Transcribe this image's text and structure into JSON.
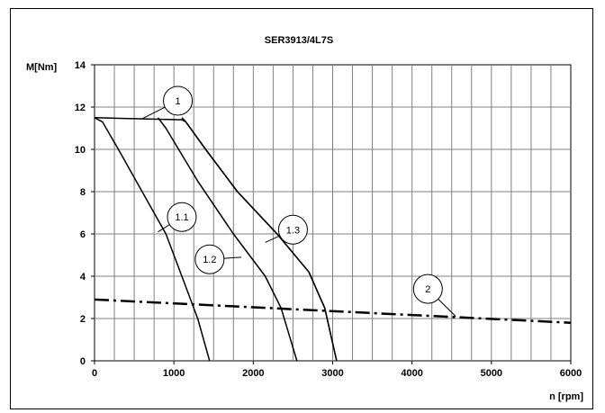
{
  "chart_data": {
    "type": "line",
    "title": "SER3913/4L7S",
    "xlabel": "n [rpm]",
    "ylabel": "M[Nm]",
    "xlim": [
      0,
      6000
    ],
    "ylim": [
      0,
      14
    ],
    "x_ticks": [
      0,
      1000,
      2000,
      3000,
      4000,
      5000,
      6000
    ],
    "y_ticks": [
      0,
      2,
      4,
      6,
      8,
      10,
      12,
      14
    ],
    "x_minor_step": 250,
    "y_minor_step": 2,
    "grid": true,
    "series": [
      {
        "name": "1",
        "style": "solid",
        "x": [
          0,
          1100,
          1150,
          1400,
          1800,
          2300,
          2700,
          2900,
          3050
        ],
        "y": [
          11.5,
          11.4,
          11.3,
          10.0,
          8.0,
          6.0,
          4.2,
          2.5,
          0
        ]
      },
      {
        "name": "1.1",
        "style": "solid",
        "x": [
          0,
          100,
          300,
          600,
          900,
          1100,
          1200,
          1300,
          1450
        ],
        "y": [
          11.5,
          11.3,
          10.0,
          8.0,
          6.0,
          4.0,
          3.0,
          2.0,
          0
        ]
      },
      {
        "name": "1.2",
        "style": "solid",
        "x": [
          800,
          900,
          1300,
          1750,
          2150,
          2350,
          2550
        ],
        "y": [
          11.5,
          11.0,
          8.5,
          6.0,
          4.0,
          2.5,
          0
        ]
      },
      {
        "name": "1.3",
        "style": "solid",
        "x": [
          1100,
          1150,
          1400,
          1800,
          2300,
          2700,
          2900,
          3050
        ],
        "y": [
          11.5,
          11.3,
          10.0,
          8.0,
          6.0,
          4.2,
          2.5,
          0
        ]
      },
      {
        "name": "2",
        "style": "dash-dot",
        "x": [
          0,
          6000
        ],
        "y": [
          2.9,
          1.8
        ]
      }
    ],
    "callouts": [
      {
        "label": "1",
        "x": 1050,
        "y": 12.3,
        "point_x": 600,
        "point_y": 11.45
      },
      {
        "label": "1.1",
        "x": 1100,
        "y": 6.8,
        "point_x": 800,
        "point_y": 6.1
      },
      {
        "label": "1.2",
        "x": 1450,
        "y": 4.8,
        "point_x": 1850,
        "point_y": 4.9
      },
      {
        "label": "1.3",
        "x": 2500,
        "y": 6.2,
        "point_x": 2150,
        "point_y": 5.6
      },
      {
        "label": "2",
        "x": 4200,
        "y": 3.4,
        "point_x": 4550,
        "point_y": 2.1
      }
    ]
  }
}
